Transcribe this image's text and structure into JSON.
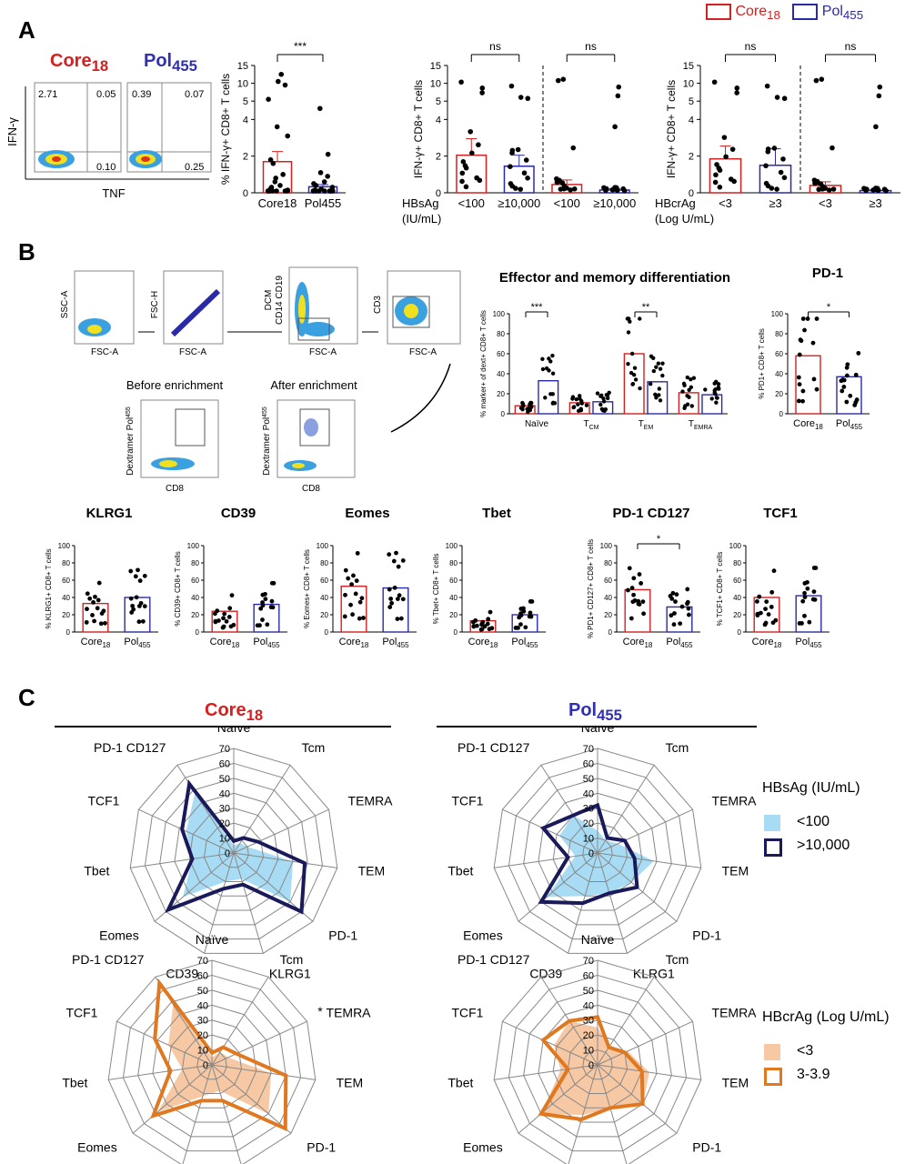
{
  "panels": {
    "a": "A",
    "b": "B",
    "c": "C"
  },
  "legend_top": {
    "core": "Core",
    "core_sub": "18",
    "pol": "Pol",
    "pol_sub": "455",
    "core_color": "#d42020",
    "pol_color": "#2a2aa8"
  },
  "panel_a": {
    "flow_core_title": "Core",
    "flow_core_sub": "18",
    "flow_pol_title": "Pol",
    "flow_pol_sub": "455",
    "y_label": "IFN-γ",
    "x_label": "TNF",
    "core_quadrants": [
      "2.71",
      "0.05",
      "0.10"
    ],
    "pol_quadrants": [
      "0.39",
      "0.07",
      "0.25"
    ]
  },
  "panel_b": {
    "gating_axes": [
      "SSC-A",
      "FSC-A",
      "FSC-H",
      "FSC-A",
      "DCM",
      "CD14 CD19",
      "FSC-A",
      "CD3",
      "FSC-A"
    ],
    "before": "Before enrichment",
    "after": "After enrichment",
    "dex_y": "Dextramer Pol",
    "dex_y_sub": "455",
    "dex_x": "CD8",
    "effector_title": "Effector and memory differentiation",
    "pd1_title": "PD-1",
    "small_titles": [
      "KLRG1",
      "CD39",
      "Eomes",
      "Tbet",
      "PD-1 CD127",
      "TCF1"
    ]
  },
  "panel_c": {
    "core_title": "Core",
    "core_sub": "18",
    "pol_title": "Pol",
    "pol_sub": "455",
    "hbsag_title": "HBsAg (IU/mL)",
    "hbsag_lo": "<100",
    "hbsag_hi": ">10,000",
    "hbcrag_title": "HBcrAg (Log U/mL)",
    "hbcrag_lo": "<3",
    "hbcrag_hi": "3-3.9",
    "radar_axes": [
      "Naïve",
      "Tcm",
      "TEMRA",
      "TEM",
      "PD-1",
      "KLRG1",
      "CD39",
      "Eomes",
      "Tbet",
      "TCF1",
      "PD-1 CD127"
    ],
    "radar_ticks": [
      "0",
      "10",
      "20",
      "30",
      "40",
      "50",
      "60",
      "70"
    ],
    "star": "*",
    "colors": {
      "hbsag_fill": "#a8dcf4",
      "hbsag_line": "#1a1a5a",
      "hbcrag_fill": "#f6c8a4",
      "hbcrag_line": "#e07820"
    }
  },
  "chart_data": [
    {
      "id": "a1",
      "type": "bar",
      "categories": [
        "Core18",
        "Pol455"
      ],
      "values": [
        1.7,
        0.33
      ],
      "err": [
        0.55,
        0.12
      ],
      "ylabel": "% IFN-γ+ CD8+ T cells",
      "yticks": [
        "0",
        "2",
        "4",
        "5",
        "10",
        "15"
      ],
      "sig": [
        "***"
      ],
      "points": [
        [
          12,
          10,
          9,
          5,
          3.5,
          3,
          1.7,
          1.5,
          0.9,
          0.7,
          0.5,
          0.3,
          0.2,
          0.1,
          0.05,
          0,
          0,
          0,
          0,
          0,
          0,
          0
        ],
        [
          4.5,
          2.0,
          1.0,
          0.8,
          0.5,
          0.4,
          0.3,
          0.2,
          0.1,
          0.05,
          0,
          0,
          0,
          0,
          0,
          0,
          0,
          0
        ]
      ]
    },
    {
      "id": "a2",
      "type": "bar",
      "categories": [
        "<100",
        "≥10,000",
        "<100",
        "≥10,000"
      ],
      "values": [
        2.05,
        1.45,
        0.45,
        0.15
      ],
      "err": [
        0.9,
        0.6,
        0.25,
        0.08
      ],
      "ylabel": "IFN-γ+ CD8+ T cells",
      "xtitle": [
        "HBsAg",
        "(IU/mL)"
      ],
      "sig": [
        "ns",
        "ns"
      ],
      "yticks": [
        "0",
        "2",
        "4",
        "5",
        "10",
        "15"
      ]
    },
    {
      "id": "a3",
      "type": "bar",
      "categories": [
        "<3",
        "≥3",
        "<3",
        "≥3"
      ],
      "values": [
        1.85,
        1.5,
        0.4,
        0.12
      ],
      "err": [
        0.7,
        0.9,
        0.2,
        0.06
      ],
      "ylabel": "IFN-γ+ CD8+ T cells",
      "xtitle": [
        "HBcrAg",
        "(Log U/mL)"
      ],
      "sig": [
        "ns",
        "ns"
      ],
      "yticks": [
        "0",
        "2",
        "4",
        "5",
        "10",
        "15"
      ]
    },
    {
      "id": "eff",
      "type": "bar",
      "categories": [
        "Naïve",
        "TCM",
        "TEM",
        "TEMRA"
      ],
      "series": [
        {
          "values": [
            8,
            11,
            60,
            21
          ]
        },
        {
          "values": [
            33,
            12,
            32,
            19
          ]
        }
      ],
      "ylabel": "% marker+ of dext+ CD8+ T cells",
      "ylim": [
        0,
        100
      ],
      "sig": [
        "***",
        "",
        "**",
        ""
      ]
    },
    {
      "id": "pd1",
      "type": "bar",
      "categories": [
        "Core18",
        "Pol455"
      ],
      "values": [
        58,
        37
      ],
      "ylabel": "% PD1+ CD8+ T cells",
      "ylim": [
        0,
        100
      ],
      "sig": [
        "*"
      ]
    },
    {
      "id": "klrg1",
      "type": "bar",
      "categories": [
        "Core18",
        "Pol455"
      ],
      "values": [
        33,
        40
      ],
      "ylabel": "% KLRG1+ CD8+ T cells",
      "ylim": [
        0,
        100
      ]
    },
    {
      "id": "cd39",
      "type": "bar",
      "categories": [
        "Core18",
        "Pol455"
      ],
      "values": [
        24,
        32
      ],
      "ylabel": "% CD39+ CD8+ T cells",
      "ylim": [
        0,
        100
      ]
    },
    {
      "id": "eomes",
      "type": "bar",
      "categories": [
        "Core18",
        "Pol455"
      ],
      "values": [
        53,
        51
      ],
      "ylabel": "% Eomes+ CD8+ T cells",
      "ylim": [
        0,
        100
      ]
    },
    {
      "id": "tbet",
      "type": "bar",
      "categories": [
        "Core18",
        "Pol455"
      ],
      "values": [
        13,
        20
      ],
      "ylabel": "% Tbet+ CD8+ T cells",
      "ylim": [
        0,
        100
      ]
    },
    {
      "id": "pd1cd127",
      "type": "bar",
      "categories": [
        "Core18",
        "Pol455"
      ],
      "values": [
        49,
        29
      ],
      "ylabel": "% PD1+ CD127+ CD8+ T cells",
      "ylim": [
        0,
        100
      ],
      "sig": [
        "*"
      ]
    },
    {
      "id": "tcf1",
      "type": "bar",
      "categories": [
        "Core18",
        "Pol455"
      ],
      "values": [
        40,
        42
      ],
      "ylabel": "% TCF1+ CD8+ T cells",
      "ylim": [
        0,
        100
      ]
    },
    {
      "id": "radar_core_hbsag",
      "type": "radar",
      "rlim": [
        0,
        70
      ],
      "fill": [
        5,
        8,
        10,
        40,
        50,
        18,
        20,
        45,
        28,
        35,
        48
      ],
      "line": [
        8,
        12,
        18,
        48,
        60,
        22,
        25,
        58,
        28,
        38,
        55
      ]
    },
    {
      "id": "radar_pol_hbsag",
      "type": "radar",
      "rlim": [
        0,
        70
      ],
      "fill": [
        15,
        10,
        15,
        38,
        30,
        28,
        30,
        45,
        15,
        28,
        30
      ],
      "line": [
        32,
        12,
        20,
        25,
        35,
        28,
        35,
        50,
        20,
        40,
        30
      ]
    },
    {
      "id": "radar_core_hbcrag",
      "type": "radar",
      "rlim": [
        0,
        70
      ],
      "fill": [
        5,
        10,
        12,
        40,
        50,
        18,
        22,
        48,
        20,
        32,
        48
      ],
      "line": [
        8,
        14,
        18,
        50,
        65,
        25,
        25,
        52,
        28,
        42,
        65
      ]
    },
    {
      "id": "radar_pol_hbcrag",
      "type": "radar",
      "rlim": [
        0,
        70
      ],
      "fill": [
        25,
        15,
        22,
        35,
        40,
        30,
        35,
        50,
        25,
        32,
        35
      ],
      "line": [
        32,
        14,
        20,
        30,
        40,
        30,
        38,
        50,
        20,
        40,
        35
      ]
    }
  ]
}
